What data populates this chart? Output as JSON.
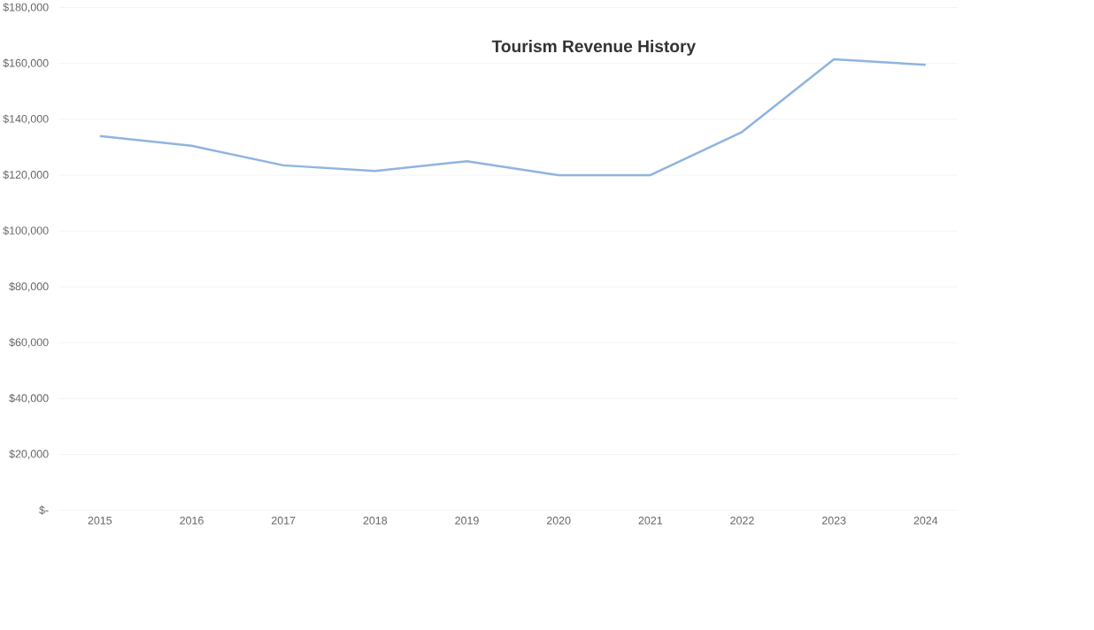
{
  "chart_data": {
    "type": "line",
    "title": "Tourism Revenue History",
    "categories": [
      "2015",
      "2016",
      "2017",
      "2018",
      "2019",
      "2020",
      "2021",
      "2022",
      "2023",
      "2024"
    ],
    "series": [
      {
        "color": "#8fb4e0",
        "values": [
          134000,
          130500,
          123500,
          121500,
          125000,
          120000,
          120000,
          135500,
          161500,
          159500
        ]
      }
    ],
    "ylim": [
      0,
      180000
    ],
    "yticks": [
      {
        "value": 0,
        "label": "$-"
      },
      {
        "value": 20000,
        "label": "$20,000"
      },
      {
        "value": 40000,
        "label": "$40,000"
      },
      {
        "value": 60000,
        "label": "$60,000"
      },
      {
        "value": 80000,
        "label": "$80,000"
      },
      {
        "value": 100000,
        "label": "$100,000"
      },
      {
        "value": 120000,
        "label": "$120,000"
      },
      {
        "value": 140000,
        "label": "$140,000"
      },
      {
        "value": 160000,
        "label": "$160,000"
      },
      {
        "value": 180000,
        "label": "$180,000"
      }
    ],
    "grid": "y",
    "marker": "none",
    "line_style": "solid"
  }
}
